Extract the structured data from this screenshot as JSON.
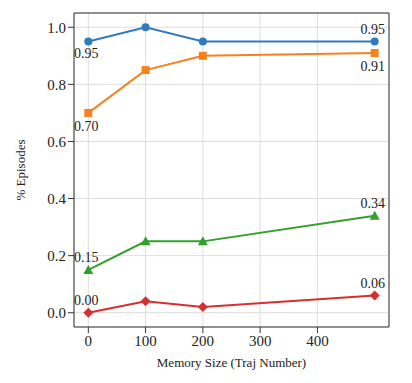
{
  "chart_data": {
    "type": "line",
    "x_label": "Memory Size (Traj Number)",
    "y_label": "% Episodes",
    "x": [
      0,
      100,
      200,
      500
    ],
    "xlim": [
      -25,
      525
    ],
    "xticks": [
      0,
      100,
      200,
      300,
      400
    ],
    "ylim": [
      -0.05,
      1.05
    ],
    "yticks": [
      {
        "value": 0,
        "label": "0.0"
      },
      {
        "value": 0.2,
        "label": "0.2"
      },
      {
        "value": 0.4,
        "label": "0.4"
      },
      {
        "value": 0.6,
        "label": "0.6"
      },
      {
        "value": 0.8,
        "label": "0.8"
      },
      {
        "value": 1.0,
        "label": "1.0"
      }
    ],
    "grid": true,
    "data_labels": true,
    "series": [
      {
        "color": "#2f7bbd",
        "marker": "circle",
        "values": [
          0.95,
          1.0,
          0.95,
          0.95
        ],
        "value_labels": [
          "0.95",
          null,
          null,
          "0.95"
        ]
      },
      {
        "color": "#f5811f",
        "marker": "square",
        "values": [
          0.7,
          0.85,
          0.9,
          0.91
        ],
        "value_labels": [
          "0.70",
          null,
          null,
          "0.91"
        ]
      },
      {
        "color": "#33a02c",
        "marker": "triangle",
        "values": [
          0.15,
          0.25,
          0.25,
          0.34
        ],
        "value_labels": [
          "0.15",
          null,
          null,
          "0.34"
        ]
      },
      {
        "color": "#d62f2f",
        "marker": "diamond",
        "values": [
          0.0,
          0.04,
          0.02,
          0.06
        ],
        "value_labels": [
          "0.00",
          null,
          null,
          "0.06"
        ]
      }
    ]
  }
}
